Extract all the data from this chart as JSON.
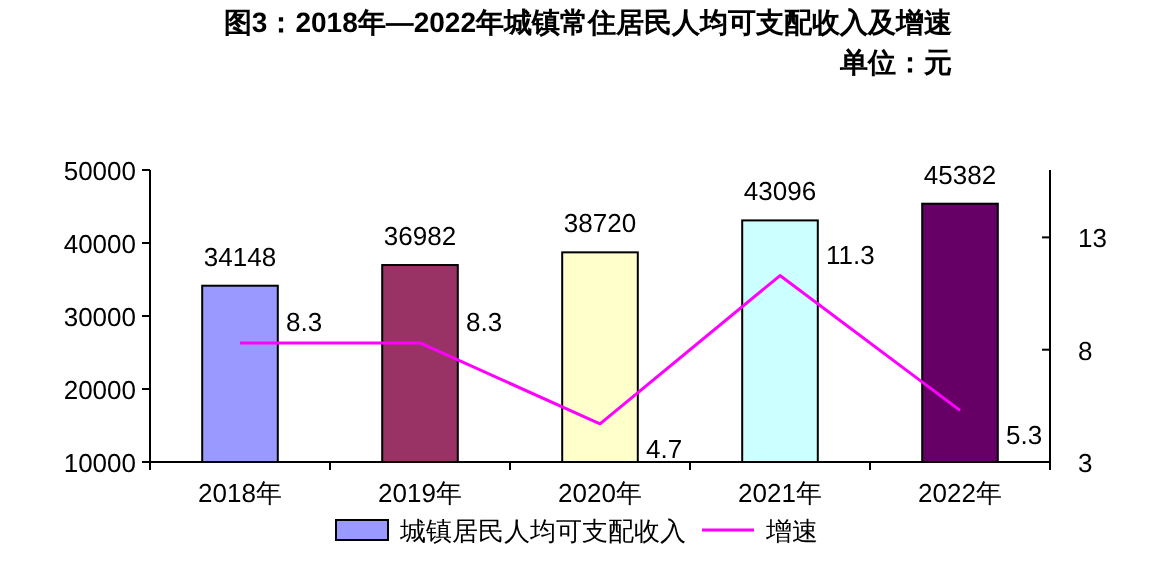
{
  "chart_data": {
    "type": "bar",
    "title": "图3：2018年—2022年城镇常住居民人均可支配收入及增速",
    "subtitle": "单位：元",
    "categories": [
      "2018年",
      "2019年",
      "2020年",
      "2021年",
      "2022年"
    ],
    "series": [
      {
        "name": "城镇居民人均可支配收入",
        "color": "#9999ff",
        "colors": [
          "#9999ff",
          "#993366",
          "#ffffcc",
          "#ccffff",
          "#660066"
        ],
        "values": [
          34148,
          36982,
          38720,
          43096,
          45382
        ]
      },
      {
        "name": "增速",
        "type": "line",
        "axis": "y2",
        "color": "#ff00ff",
        "values": [
          8.3,
          8.3,
          4.7,
          11.3,
          5.3
        ]
      }
    ],
    "ylim": [
      10000,
      50000
    ],
    "yticks": [
      10000,
      20000,
      30000,
      40000,
      50000
    ],
    "y2lim": [
      3,
      16
    ],
    "y2ticks": [
      3,
      8,
      13
    ],
    "data_labels": true,
    "legend": "bottom"
  }
}
